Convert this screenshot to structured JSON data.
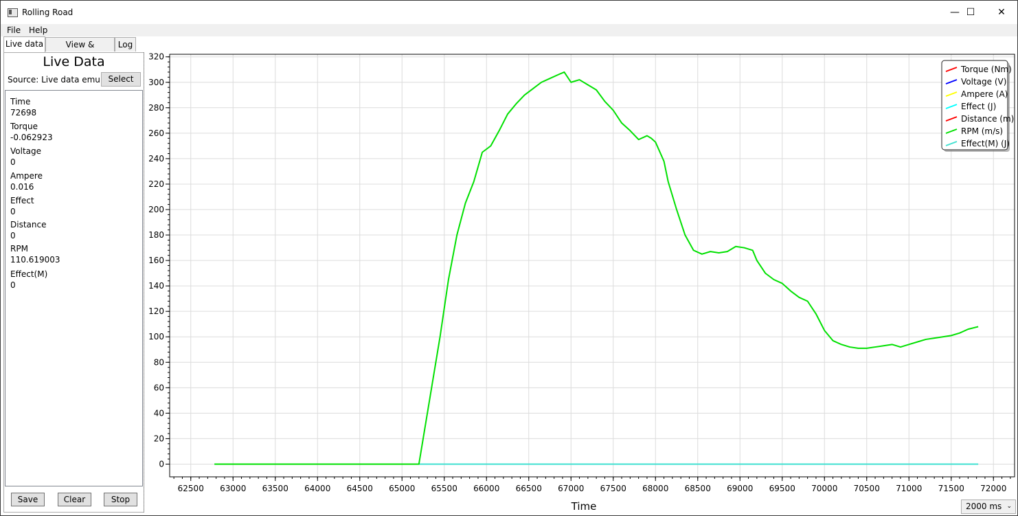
{
  "window": {
    "title": "Rolling Road",
    "minimize": "—",
    "maximize": "☐",
    "close": "✕"
  },
  "menu": [
    "File",
    "Help"
  ],
  "tabs": [
    "Live data",
    "View & Compare",
    "Log"
  ],
  "panel": {
    "title": "Live Data",
    "source_label": "Source: Live data emula",
    "select_label": "Select",
    "fields": [
      {
        "name": "Time",
        "value": "72698"
      },
      {
        "name": "Torque",
        "value": "-0.062923"
      },
      {
        "name": "Voltage",
        "value": "0"
      },
      {
        "name": "Ampere",
        "value": "0.016"
      },
      {
        "name": "Effect",
        "value": "0"
      },
      {
        "name": "Distance",
        "value": "0"
      },
      {
        "name": "RPM",
        "value": "110.619003"
      },
      {
        "name": "Effect(M)",
        "value": "0"
      }
    ],
    "buttons": {
      "save": "Save",
      "clear": "Clear",
      "stop": "Stop"
    }
  },
  "interval": {
    "value": "2000 ms"
  },
  "chart_data": {
    "type": "line",
    "xlabel": "Time",
    "ylabel": "",
    "xlim": [
      62250,
      72250
    ],
    "ylim": [
      -10,
      322
    ],
    "x_ticks": [
      62500,
      63000,
      63500,
      64000,
      64500,
      65000,
      65500,
      66000,
      66500,
      67000,
      67500,
      68000,
      68500,
      69000,
      69500,
      70000,
      70500,
      71000,
      71500,
      72000
    ],
    "y_ticks": [
      0,
      20,
      40,
      60,
      80,
      100,
      120,
      140,
      160,
      180,
      200,
      220,
      240,
      260,
      280,
      300,
      320
    ],
    "grid": true,
    "legend_position": "top-right",
    "legend": [
      {
        "name": "Torque (Nm)",
        "color": "#ff0000"
      },
      {
        "name": "Voltage (V)",
        "color": "#0000ff"
      },
      {
        "name": "Ampere (A)",
        "color": "#ffff00"
      },
      {
        "name": "Effect (J)",
        "color": "#00ffff"
      },
      {
        "name": "Distance (m)",
        "color": "#ff0000"
      },
      {
        "name": "RPM (m/s)",
        "color": "#00e000"
      },
      {
        "name": "Effect(M) (J)",
        "color": "#40e0d0"
      }
    ],
    "series": [
      {
        "name": "Effect(M) (J)",
        "color": "#40e0d0",
        "x": [
          62780,
          71820
        ],
        "y": [
          0,
          0
        ]
      },
      {
        "name": "RPM (m/s)",
        "color": "#00e000",
        "x": [
          62780,
          65200,
          65250,
          65350,
          65450,
          65550,
          65650,
          65750,
          65850,
          65950,
          66050,
          66150,
          66250,
          66350,
          66450,
          66550,
          66650,
          66750,
          66850,
          66920,
          67000,
          67100,
          67200,
          67300,
          67400,
          67500,
          67600,
          67700,
          67800,
          67900,
          67950,
          68000,
          68100,
          68150,
          68250,
          68350,
          68450,
          68550,
          68650,
          68750,
          68850,
          68950,
          69050,
          69150,
          69200,
          69300,
          69400,
          69500,
          69600,
          69700,
          69800,
          69900,
          70000,
          70100,
          70200,
          70300,
          70400,
          70500,
          70600,
          70700,
          70800,
          70900,
          71000,
          71100,
          71200,
          71300,
          71400,
          71500,
          71600,
          71700,
          71820
        ],
        "y": [
          0,
          0,
          20,
          60,
          100,
          145,
          180,
          205,
          222,
          245,
          250,
          262,
          275,
          283,
          290,
          295,
          300,
          303,
          306,
          308,
          300,
          302,
          298,
          294,
          285,
          278,
          268,
          262,
          255,
          258,
          256,
          253,
          238,
          222,
          200,
          180,
          168,
          165,
          167,
          166,
          167,
          171,
          170,
          168,
          160,
          150,
          145,
          142,
          136,
          131,
          128,
          118,
          105,
          97,
          94,
          92,
          91,
          91,
          92,
          93,
          94,
          92,
          94,
          96,
          98,
          99,
          100,
          101,
          103,
          106,
          108
        ]
      }
    ]
  }
}
